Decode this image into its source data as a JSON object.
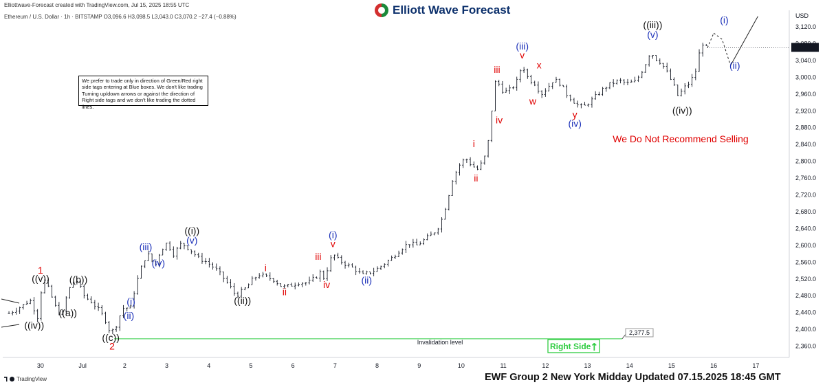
{
  "header": {
    "created_by": "Elliottwave-Forecast created with TradingView.com, Jul 15, 2025 18:55 UTC",
    "symbol_line": "Ethereum / U.S. Dollar · 1h · BITSTAMP  O3,096.6  H3,098.5  L3,043.0  C3,070.2  −27.4 (−0.88%)"
  },
  "brand": {
    "name": "Elliott Wave Forecast"
  },
  "disclaimer": "We prefer to trade only in direction of Green/Red right side tags entering at Blue boxes. We don't like trading Turning up/down arrows or against the direction of Right side tags and we don't like trading the dotted lines.",
  "footer": {
    "update_text": "EWF Group 2 New York Midday Updated 07.15.2025 18:45 GMT",
    "tv_logo": "TradingView"
  },
  "colors": {
    "red": "#e00000",
    "blue": "#1a2fb8",
    "black": "#111111",
    "green": "#2ecc40",
    "candle": "#131722"
  },
  "chart_data": {
    "type": "candlestick",
    "currency_label": "USD",
    "y_ticks": [
      "3,120.0",
      "3,080.0",
      "3,040.0",
      "3,000.0",
      "2,960.0",
      "2,920.0",
      "2,880.0",
      "2,840.0",
      "2,800.0",
      "2,760.0",
      "2,720.0",
      "2,680.0",
      "2,640.0",
      "2,600.0",
      "2,560.0",
      "2,520.0",
      "2,480.0",
      "2,440.0",
      "2,400.0",
      "2,360.0"
    ],
    "x_ticks": [
      "30",
      "Jul",
      "2",
      "3",
      "4",
      "5",
      "6",
      "7",
      "8",
      "9",
      "10",
      "11",
      "12",
      "13",
      "14",
      "15",
      "16",
      "17"
    ],
    "ylim": [
      2340,
      3145
    ],
    "last_price": "3,070.2",
    "invalidation": {
      "label": "Invalidation level",
      "value": "2,377.5"
    },
    "right_side_tag": "Right Side",
    "recommendation": "We Do Not Recommend Selling",
    "price_path": [
      [
        -0.8,
        2438
      ],
      [
        -0.5,
        2455
      ],
      [
        -0.3,
        2470
      ],
      [
        -0.1,
        2425
      ],
      [
        0.0,
        2525
      ],
      [
        0.15,
        2495
      ],
      [
        0.3,
        2455
      ],
      [
        0.45,
        2430
      ],
      [
        0.6,
        2490
      ],
      [
        0.78,
        2522
      ],
      [
        1.0,
        2478
      ],
      [
        1.2,
        2462
      ],
      [
        1.4,
        2438
      ],
      [
        1.5,
        2420
      ],
      [
        1.62,
        2390
      ],
      [
        1.75,
        2410
      ],
      [
        1.9,
        2450
      ],
      [
        2.1,
        2452
      ],
      [
        2.2,
        2500
      ],
      [
        2.4,
        2565
      ],
      [
        2.55,
        2580
      ],
      [
        2.65,
        2545
      ],
      [
        2.8,
        2588
      ],
      [
        2.95,
        2605
      ],
      [
        3.0,
        2600
      ],
      [
        3.1,
        2578
      ],
      [
        3.3,
        2605
      ],
      [
        3.5,
        2590
      ],
      [
        3.7,
        2570
      ],
      [
        3.9,
        2560
      ],
      [
        4.1,
        2545
      ],
      [
        4.4,
        2510
      ],
      [
        4.6,
        2480
      ],
      [
        4.85,
        2500
      ],
      [
        5.0,
        2520
      ],
      [
        5.15,
        2530
      ],
      [
        5.3,
        2525
      ],
      [
        5.5,
        2518
      ],
      [
        5.7,
        2500
      ],
      [
        5.9,
        2505
      ],
      [
        6.1,
        2512
      ],
      [
        6.3,
        2510
      ],
      [
        6.5,
        2525
      ],
      [
        6.6,
        2535
      ],
      [
        6.7,
        2520
      ],
      [
        6.8,
        2555
      ],
      [
        6.9,
        2580
      ],
      [
        7.0,
        2568
      ],
      [
        7.2,
        2555
      ],
      [
        7.4,
        2545
      ],
      [
        7.6,
        2528
      ],
      [
        7.75,
        2535
      ],
      [
        7.9,
        2540
      ],
      [
        8.1,
        2555
      ],
      [
        8.3,
        2570
      ],
      [
        8.5,
        2590
      ],
      [
        8.7,
        2605
      ],
      [
        8.9,
        2600
      ],
      [
        9.1,
        2615
      ],
      [
        9.3,
        2630
      ],
      [
        9.45,
        2650
      ],
      [
        9.6,
        2700
      ],
      [
        9.75,
        2760
      ],
      [
        9.9,
        2790
      ],
      [
        10.05,
        2808
      ],
      [
        10.2,
        2790
      ],
      [
        10.35,
        2780
      ],
      [
        10.5,
        2808
      ],
      [
        10.62,
        2860
      ],
      [
        10.7,
        2950
      ],
      [
        10.78,
        3000
      ],
      [
        10.9,
        2970
      ],
      [
        11.05,
        2965
      ],
      [
        11.25,
        2985
      ],
      [
        11.4,
        3030
      ],
      [
        11.55,
        2995
      ],
      [
        11.7,
        2985
      ],
      [
        11.85,
        2960
      ],
      [
        12.0,
        2975
      ],
      [
        12.15,
        2995
      ],
      [
        12.3,
        2985
      ],
      [
        12.45,
        2960
      ],
      [
        12.6,
        2945
      ],
      [
        12.75,
        2930
      ],
      [
        12.9,
        2932
      ],
      [
        13.1,
        2950
      ],
      [
        13.3,
        2970
      ],
      [
        13.5,
        2985
      ],
      [
        13.7,
        2992
      ],
      [
        13.9,
        2985
      ],
      [
        14.1,
        2990
      ],
      [
        14.3,
        3025
      ],
      [
        14.45,
        3062
      ],
      [
        14.55,
        3045
      ],
      [
        14.7,
        3035
      ],
      [
        14.85,
        3010
      ],
      [
        15.0,
        2980
      ],
      [
        15.1,
        2955
      ],
      [
        15.25,
        2975
      ],
      [
        15.4,
        2990
      ],
      [
        15.55,
        3020
      ],
      [
        15.65,
        3085
      ],
      [
        15.78,
        3070
      ]
    ],
    "projection": [
      [
        15.8,
        3070
      ],
      [
        15.95,
        3105
      ],
      [
        16.15,
        3090
      ],
      [
        16.35,
        3028
      ],
      [
        17.0,
        3145
      ]
    ],
    "waves": [
      {
        "label": "1",
        "t": -0.05,
        "p": 2533,
        "color": "red"
      },
      {
        "label": "((v))",
        "t": -0.05,
        "p": 2513,
        "color": "black"
      },
      {
        "label": "((iv))",
        "t": -0.2,
        "p": 2402,
        "color": "black"
      },
      {
        "label": "((b))",
        "t": 0.85,
        "p": 2511,
        "color": "black"
      },
      {
        "label": "((a))",
        "t": 0.6,
        "p": 2431,
        "color": "black"
      },
      {
        "label": "((c))",
        "t": 1.62,
        "p": 2372,
        "color": "black"
      },
      {
        "label": "2",
        "t": 1.65,
        "p": 2352,
        "color": "red"
      },
      {
        "label": "(i)",
        "t": 2.1,
        "p": 2458,
        "color": "blue"
      },
      {
        "label": "(ii)",
        "t": 2.05,
        "p": 2425,
        "color": "blue"
      },
      {
        "label": "(iii)",
        "t": 2.45,
        "p": 2588,
        "color": "blue"
      },
      {
        "label": "(iv)",
        "t": 2.75,
        "p": 2550,
        "color": "blue"
      },
      {
        "label": "((i))",
        "t": 3.55,
        "p": 2627,
        "color": "black"
      },
      {
        "label": "(v)",
        "t": 3.55,
        "p": 2604,
        "color": "blue"
      },
      {
        "label": "((ii))",
        "t": 4.75,
        "p": 2461,
        "color": "black"
      },
      {
        "label": "i",
        "t": 5.3,
        "p": 2538,
        "color": "red"
      },
      {
        "label": "ii",
        "t": 5.75,
        "p": 2481,
        "color": "red"
      },
      {
        "label": "iii",
        "t": 6.55,
        "p": 2565,
        "color": "red"
      },
      {
        "label": "iv",
        "t": 6.75,
        "p": 2498,
        "color": "red"
      },
      {
        "label": "(i)",
        "t": 6.9,
        "p": 2617,
        "color": "blue"
      },
      {
        "label": "v",
        "t": 6.9,
        "p": 2596,
        "color": "red"
      },
      {
        "label": "(ii)",
        "t": 7.7,
        "p": 2509,
        "color": "blue"
      },
      {
        "label": "i",
        "t": 10.25,
        "p": 2834,
        "color": "red"
      },
      {
        "label": "ii",
        "t": 10.3,
        "p": 2752,
        "color": "red"
      },
      {
        "label": "iii",
        "t": 10.8,
        "p": 3010,
        "color": "red"
      },
      {
        "label": "iv",
        "t": 10.85,
        "p": 2890,
        "color": "red"
      },
      {
        "label": "(iii)",
        "t": 11.4,
        "p": 3066,
        "color": "blue"
      },
      {
        "label": "v",
        "t": 11.4,
        "p": 3045,
        "color": "red"
      },
      {
        "label": "x",
        "t": 11.8,
        "p": 3021,
        "color": "red"
      },
      {
        "label": "w",
        "t": 11.65,
        "p": 2935,
        "color": "red"
      },
      {
        "label": "y",
        "t": 12.65,
        "p": 2903,
        "color": "red"
      },
      {
        "label": "(iv)",
        "t": 12.65,
        "p": 2882,
        "color": "blue"
      },
      {
        "label": "((iii))",
        "t": 14.5,
        "p": 3117,
        "color": "black"
      },
      {
        "label": "(v)",
        "t": 14.5,
        "p": 3094,
        "color": "blue"
      },
      {
        "label": "((iv))",
        "t": 15.2,
        "p": 2913,
        "color": "black"
      },
      {
        "label": "(i)",
        "t": 16.2,
        "p": 3128,
        "color": "blue"
      },
      {
        "label": "(ii)",
        "t": 16.45,
        "p": 3020,
        "color": "blue"
      }
    ]
  }
}
